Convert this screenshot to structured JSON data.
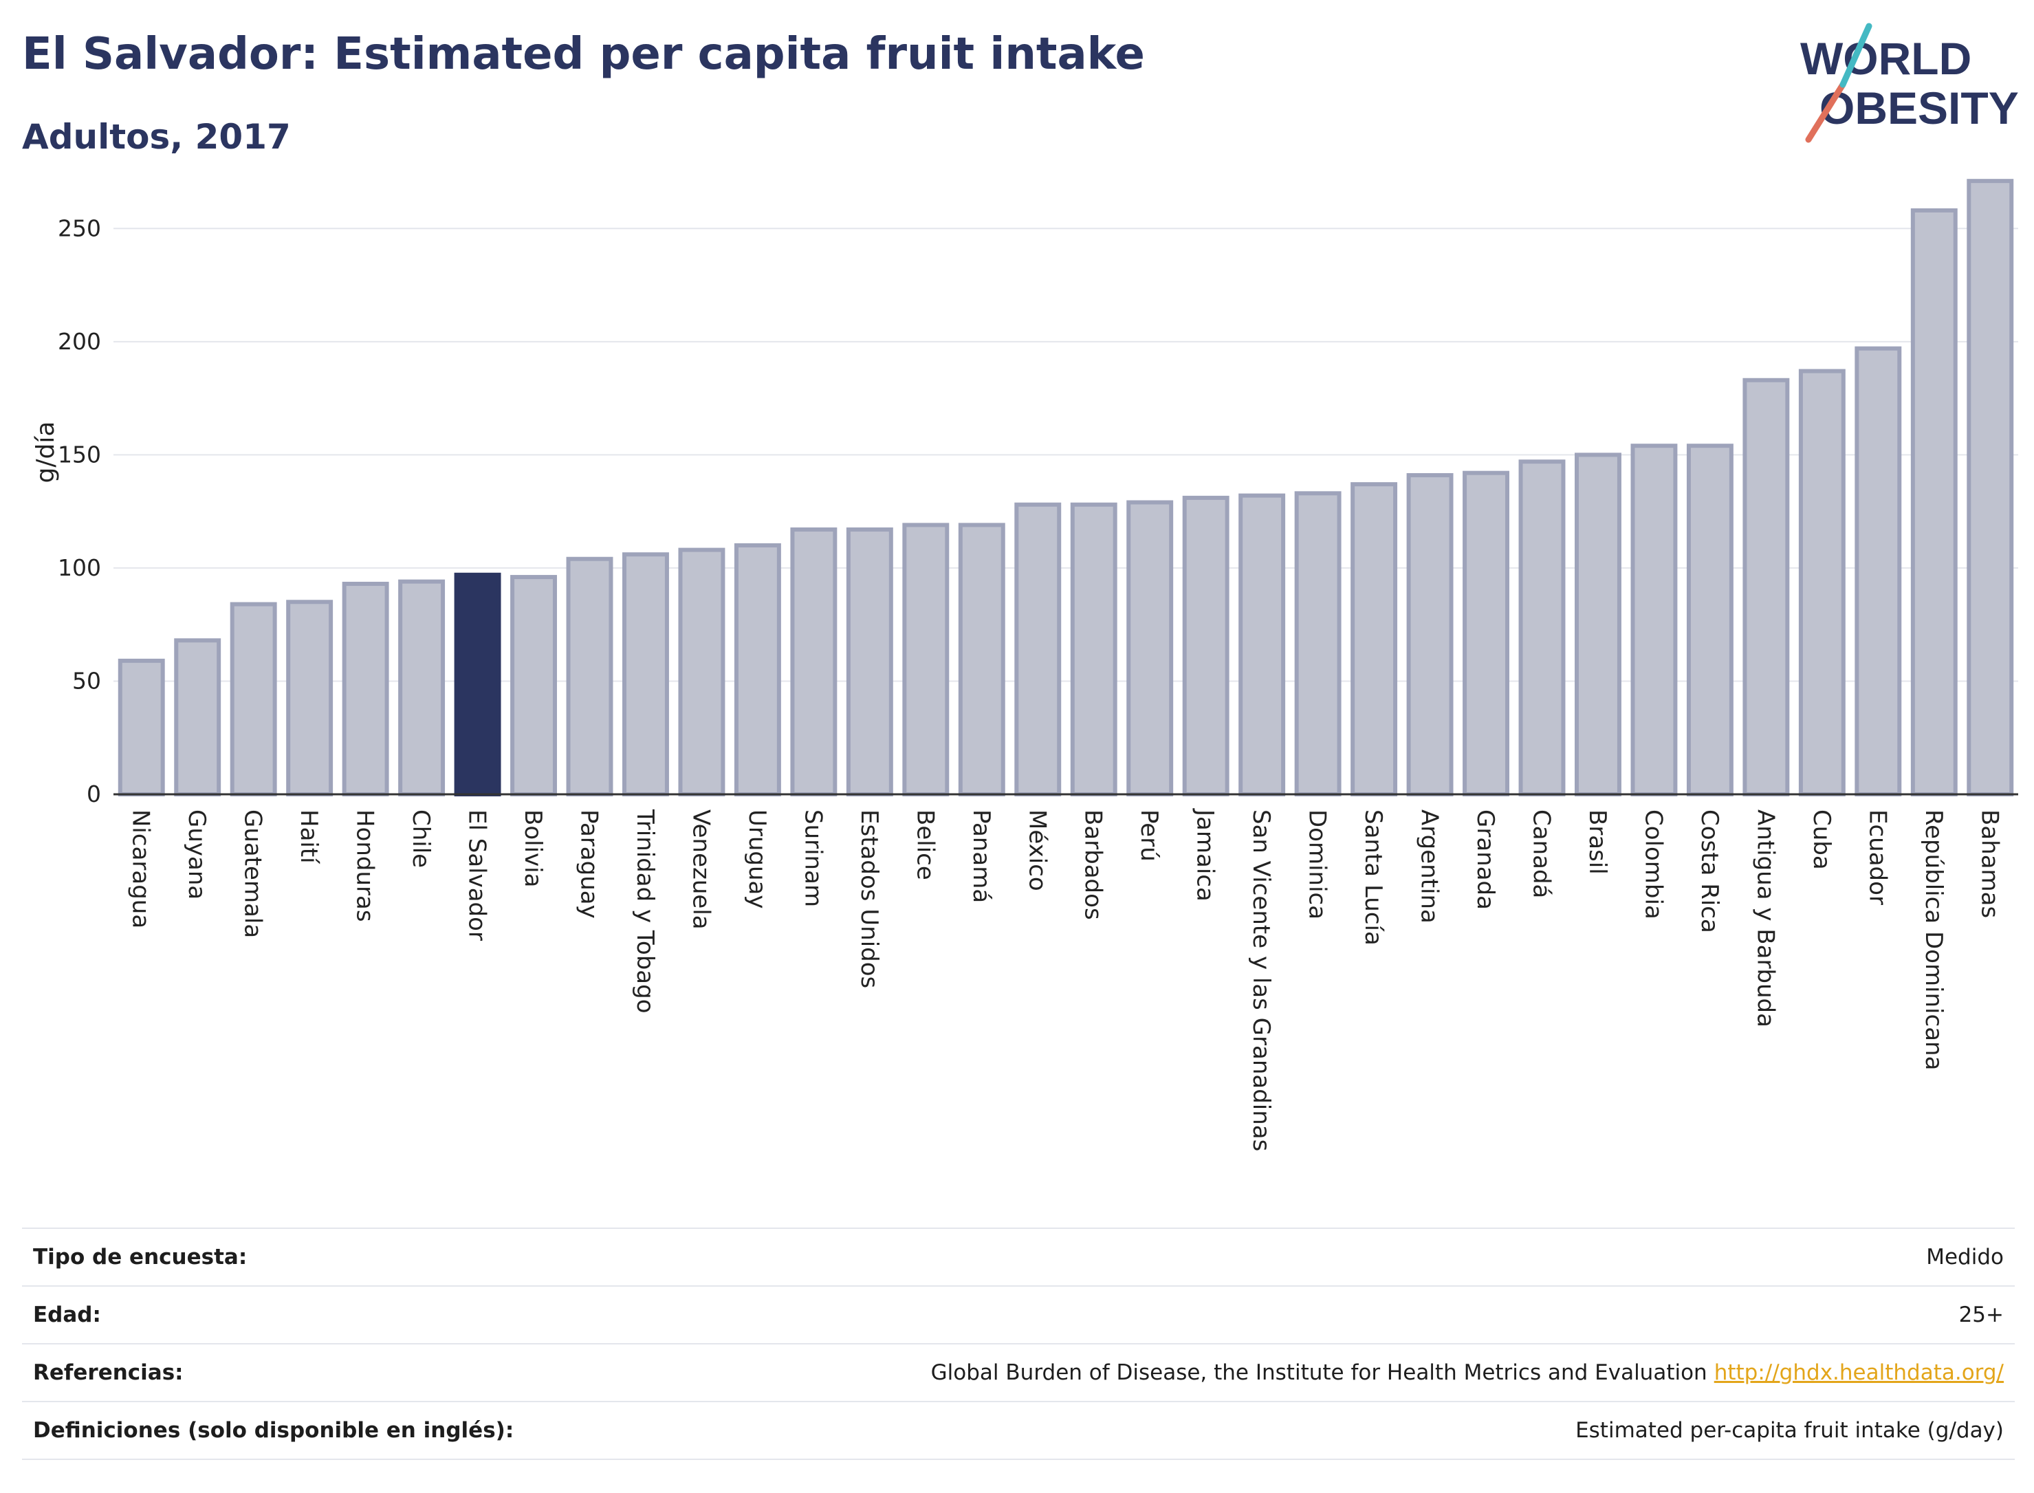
{
  "header": {
    "title": "El Salvador: Estimated per capita fruit intake",
    "subtitle": "Adultos, 2017"
  },
  "logo": {
    "line1": "WORLD",
    "line2": "OBESITY"
  },
  "chart_data": {
    "type": "bar",
    "title": "El Salvador: Estimated per capita fruit intake",
    "subtitle": "Adultos, 2017",
    "ylabel": "g/día",
    "xlabel": "",
    "ylim": [
      0,
      275
    ],
    "yticks": [
      0,
      50,
      100,
      150,
      200,
      250
    ],
    "grid": true,
    "highlight": "El Salvador",
    "categories": [
      "Nicaragua",
      "Guyana",
      "Guatemala",
      "Haití",
      "Honduras",
      "Chile",
      "El Salvador",
      "Bolivia",
      "Paraguay",
      "Trinidad y Tobago",
      "Venezuela",
      "Uruguay",
      "Surinam",
      "Estados Unidos",
      "Belice",
      "Panamá",
      "México",
      "Barbados",
      "Perú",
      "Jamaica",
      "San Vicente y las Granadinas",
      "Dominica",
      "Santa Lucía",
      "Argentina",
      "Granada",
      "Canadá",
      "Brasil",
      "Colombia",
      "Costa Rica",
      "Antigua y Barbuda",
      "Cuba",
      "Ecuador",
      "República Dominicana",
      "Bahamas"
    ],
    "values": [
      59,
      68,
      84,
      85,
      93,
      94,
      97,
      96,
      104,
      106,
      108,
      110,
      117,
      117,
      119,
      119,
      128,
      128,
      129,
      131,
      132,
      133,
      137,
      141,
      142,
      147,
      150,
      154,
      154,
      183,
      187,
      197,
      258,
      271
    ],
    "colors": {
      "bar": "#bfc2cf",
      "bar_border": "#9ea3ba",
      "highlight": "#2b3560",
      "grid": "#e4e6ec",
      "axis": "#333333"
    }
  },
  "info": {
    "rows": [
      {
        "label": "Tipo de encuesta:",
        "value": "Medido"
      },
      {
        "label": "Edad:",
        "value": "25+"
      },
      {
        "label": "Referencias:",
        "value": "Global Burden of Disease, the Institute for Health Metrics and Evaluation",
        "link": "http://ghdx.healthdata.org/"
      },
      {
        "label": "Definiciones (solo disponible en inglés):",
        "value": "Estimated per-capita fruit intake (g/day)"
      }
    ]
  }
}
